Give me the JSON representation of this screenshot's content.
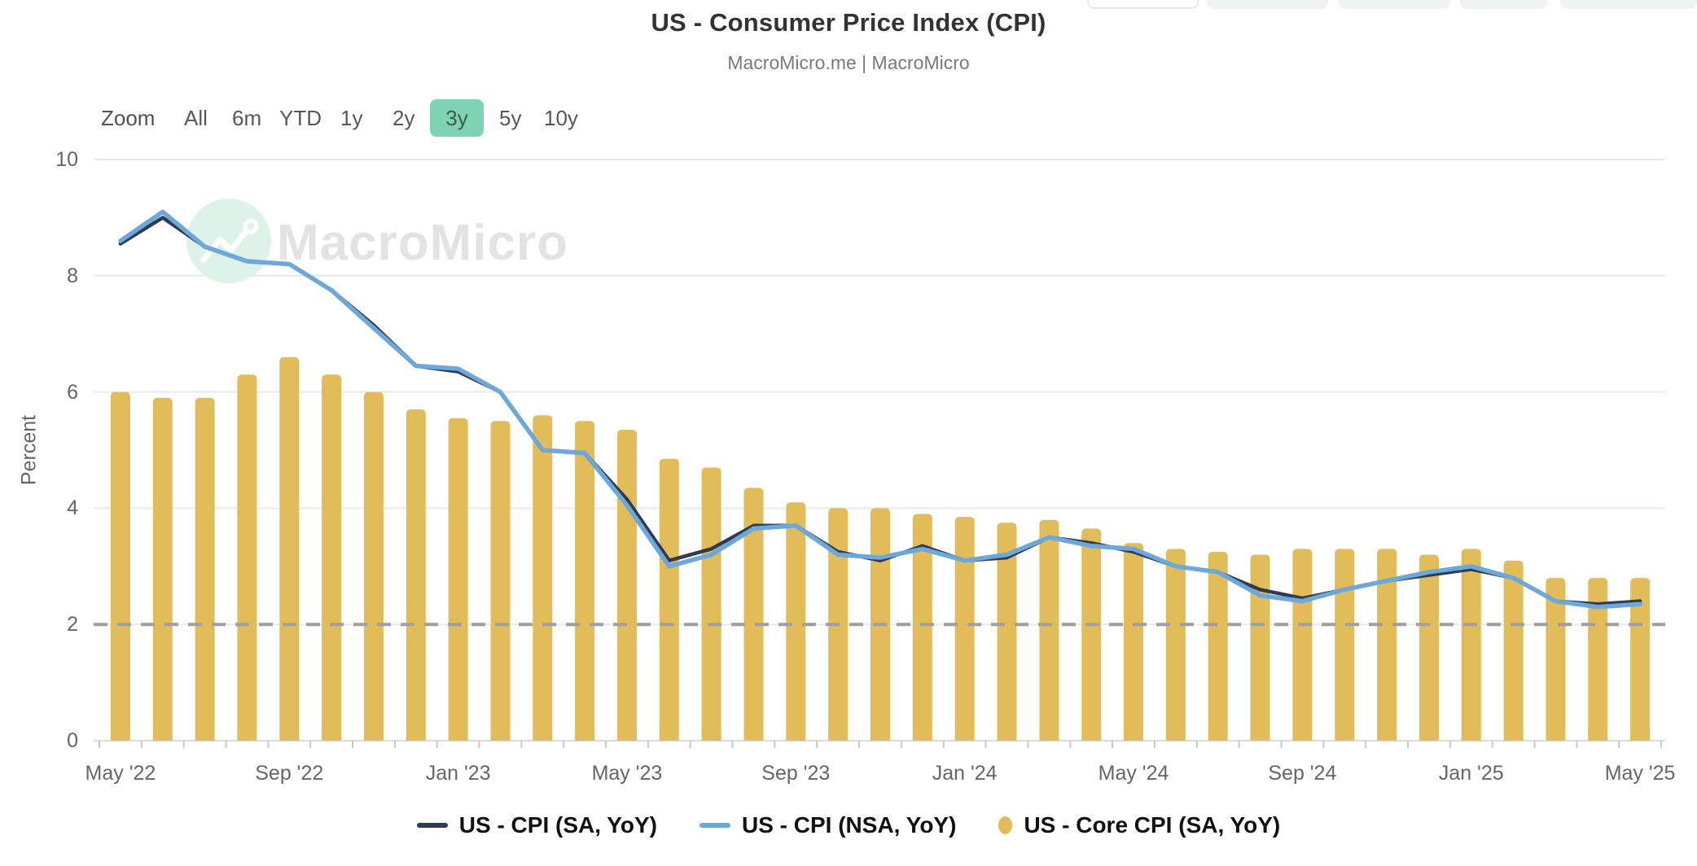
{
  "header": {
    "title": "US - Consumer Price Index (CPI)",
    "subtitle": "MacroMicro.me | MacroMicro"
  },
  "toolbar": {
    "zoom_label": "Zoom",
    "buttons": [
      "All",
      "6m",
      "YTD",
      "1y",
      "2y",
      "3y",
      "5y",
      "10y"
    ],
    "selected": "3y",
    "selected_bg": "#7ed3b2"
  },
  "watermark": {
    "text": "MacroMicro",
    "circle_color": "#ddf3e9",
    "text_color": "#e3e3e3"
  },
  "y_axis": {
    "title": "Percent",
    "ticks": [
      0,
      2,
      4,
      6,
      8,
      10
    ],
    "min": 0,
    "max": 10
  },
  "x_axis": {
    "tick_labels": [
      "May '22",
      "Sep '22",
      "Jan '23",
      "May '23",
      "Sep '23",
      "Jan '24",
      "May '24",
      "Sep '24",
      "Jan '25",
      "May '25"
    ],
    "tick_label_month_indices": [
      0,
      4,
      8,
      12,
      16,
      20,
      24,
      28,
      32,
      36
    ]
  },
  "reference_line": {
    "value": 2,
    "style": "dashed",
    "color": "#9f9f9f"
  },
  "legend": [
    {
      "label": "US - CPI (SA, YoY)",
      "marker": "line",
      "color": "#2f3b52"
    },
    {
      "label": "US - CPI (NSA, YoY)",
      "marker": "line",
      "color": "#6ca8d9"
    },
    {
      "label": "US - Core CPI (SA, YoY)",
      "marker": "circle",
      "color": "#e2bc58"
    }
  ],
  "chart_data": {
    "type": "bar",
    "subtype": "bar + 2 overlaid lines, monthly data",
    "title": "US - Consumer Price Index (CPI)",
    "xlabel": "",
    "ylabel": "Percent",
    "ylim": [
      0,
      10
    ],
    "grid": true,
    "legend_position": "bottom",
    "dashed_reference_value": 2,
    "x": [
      "May '22",
      "Jun '22",
      "Jul '22",
      "Aug '22",
      "Sep '22",
      "Oct '22",
      "Nov '22",
      "Dec '22",
      "Jan '23",
      "Feb '23",
      "Mar '23",
      "Apr '23",
      "May '23",
      "Jun '23",
      "Jul '23",
      "Aug '23",
      "Sep '23",
      "Oct '23",
      "Nov '23",
      "Dec '23",
      "Jan '24",
      "Feb '24",
      "Mar '24",
      "Apr '24",
      "May '24",
      "Jun '24",
      "Jul '24",
      "Aug '24",
      "Sep '24",
      "Oct '24",
      "Nov '24",
      "Dec '24",
      "Jan '25",
      "Feb '25",
      "Mar '25",
      "Apr '25",
      "May '25"
    ],
    "series": [
      {
        "name": "US - CPI (SA, YoY)",
        "type": "line",
        "color": "#2f3b52",
        "values": [
          8.55,
          9.0,
          8.5,
          8.25,
          8.2,
          7.75,
          7.15,
          6.45,
          6.35,
          6.0,
          5.0,
          4.95,
          4.15,
          3.1,
          3.3,
          3.7,
          3.7,
          3.25,
          3.1,
          3.35,
          3.1,
          3.15,
          3.5,
          3.4,
          3.25,
          3.0,
          2.9,
          2.6,
          2.45,
          2.6,
          2.75,
          2.85,
          2.95,
          2.8,
          2.4,
          2.35,
          2.4
        ]
      },
      {
        "name": "US - CPI (NSA, YoY)",
        "type": "line",
        "color": "#6ca8d9",
        "values": [
          8.6,
          9.1,
          8.5,
          8.25,
          8.2,
          7.75,
          7.1,
          6.45,
          6.4,
          6.0,
          5.0,
          4.95,
          4.05,
          3.0,
          3.2,
          3.65,
          3.7,
          3.2,
          3.15,
          3.3,
          3.1,
          3.2,
          3.5,
          3.35,
          3.3,
          3.0,
          2.9,
          2.5,
          2.4,
          2.6,
          2.75,
          2.9,
          3.0,
          2.8,
          2.4,
          2.3,
          2.35
        ]
      },
      {
        "name": "US - Core CPI (SA, YoY)",
        "type": "bar",
        "color": "#e2bc58",
        "values": [
          6.0,
          5.9,
          5.9,
          6.3,
          6.6,
          6.3,
          6.0,
          5.7,
          5.55,
          5.5,
          5.6,
          5.5,
          5.35,
          4.85,
          4.7,
          4.35,
          4.1,
          4.0,
          4.0,
          3.9,
          3.85,
          3.75,
          3.8,
          3.65,
          3.4,
          3.3,
          3.25,
          3.2,
          3.3,
          3.3,
          3.3,
          3.2,
          3.3,
          3.1,
          2.8,
          2.8,
          2.8
        ]
      }
    ]
  }
}
